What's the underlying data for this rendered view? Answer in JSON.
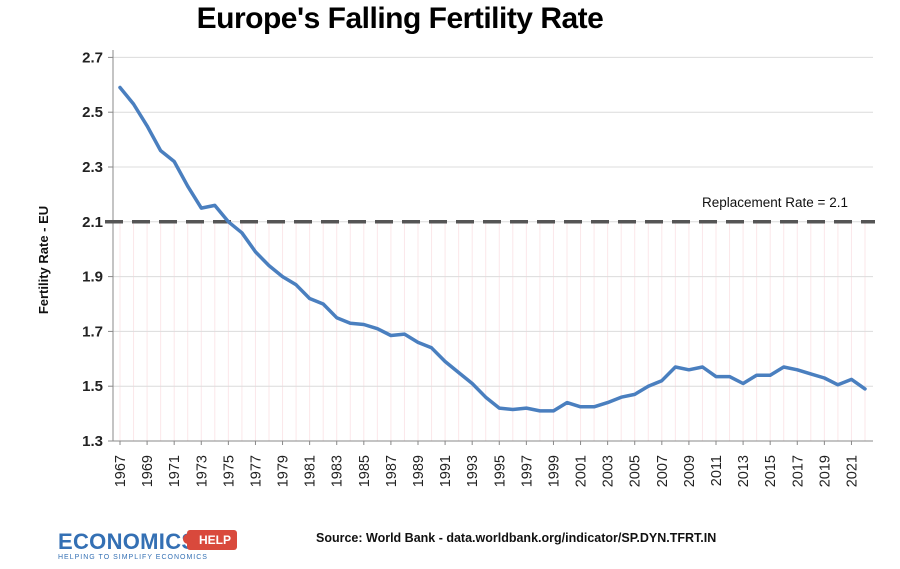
{
  "chart_data": {
    "type": "line",
    "title": "Europe's Falling Fertility Rate",
    "xlabel": "",
    "ylabel": "Fertility Rate - EU",
    "ylim": [
      1.3,
      2.8
    ],
    "yticks": [
      "1.3",
      "1.5",
      "1.7",
      "1.9",
      "2.1",
      "2.3",
      "2.5",
      "2.7"
    ],
    "xticks": [
      "1967",
      "1969",
      "1971",
      "1973",
      "1975",
      "1977",
      "1979",
      "1981",
      "1983",
      "1985",
      "1987",
      "1989",
      "1991",
      "1993",
      "1995",
      "1997",
      "1999",
      "2001",
      "2003",
      "2005",
      "2007",
      "2009",
      "2011",
      "2013",
      "2015",
      "2017",
      "2019",
      "2021"
    ],
    "grid": true,
    "series": [
      {
        "color": "#4a7fbf",
        "x": [
          1967,
          1968,
          1969,
          1970,
          1971,
          1972,
          1973,
          1974,
          1975,
          1976,
          1977,
          1978,
          1979,
          1980,
          1981,
          1982,
          1983,
          1984,
          1985,
          1986,
          1987,
          1988,
          1989,
          1990,
          1991,
          1992,
          1993,
          1994,
          1995,
          1996,
          1997,
          1998,
          1999,
          2000,
          2001,
          2002,
          2003,
          2004,
          2005,
          2006,
          2007,
          2008,
          2009,
          2010,
          2011,
          2012,
          2013,
          2014,
          2015,
          2016,
          2017,
          2018,
          2019,
          2020,
          2021,
          2022
        ],
        "values": [
          2.59,
          2.53,
          2.45,
          2.36,
          2.32,
          2.23,
          2.15,
          2.16,
          2.1,
          2.06,
          1.99,
          1.94,
          1.9,
          1.87,
          1.82,
          1.8,
          1.75,
          1.73,
          1.725,
          1.71,
          1.685,
          1.69,
          1.66,
          1.64,
          1.59,
          1.55,
          1.51,
          1.46,
          1.42,
          1.415,
          1.42,
          1.41,
          1.41,
          1.44,
          1.425,
          1.425,
          1.44,
          1.46,
          1.47,
          1.5,
          1.52,
          1.57,
          1.56,
          1.57,
          1.535,
          1.535,
          1.51,
          1.54,
          1.54,
          1.57,
          1.56,
          1.545,
          1.53,
          1.505,
          1.525,
          1.49
        ]
      }
    ],
    "reference_line": {
      "value": 2.1,
      "label": "Replacement Rate = 2.1",
      "color": "#555555"
    }
  },
  "footer": {
    "source": "Source: World Bank - data.worldbank.org/indicator/SP.DYN.TFRT.IN",
    "logo_word": "ECONOMICS",
    "logo_badge": "HELP",
    "logo_tagline": "HELPING TO SIMPLIFY ECONOMICS"
  }
}
